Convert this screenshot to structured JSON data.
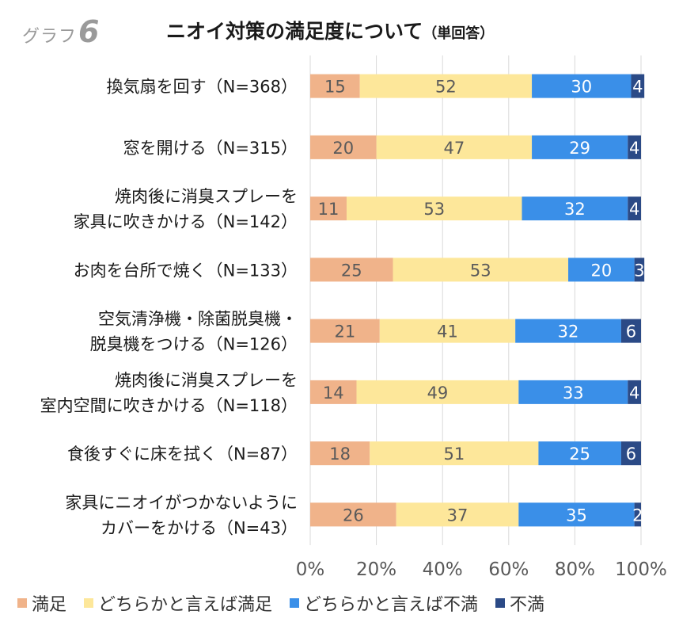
{
  "graph_label": {
    "prefix": "グラフ",
    "number": "6"
  },
  "title": {
    "main": "ニオイ対策の満足度について",
    "sub": "（単回答）"
  },
  "chart_data": {
    "type": "bar",
    "orientation": "horizontal",
    "stacked": "percent",
    "title": "ニオイ対策の満足度について（単回答）",
    "xlabel": "",
    "ylabel": "",
    "xlim": [
      0,
      100
    ],
    "x_ticks": [
      "0%",
      "20%",
      "40%",
      "60%",
      "80%",
      "100%"
    ],
    "grid": true,
    "legend_position": "bottom",
    "categories": [
      [
        "換気扇を回す（N=368）"
      ],
      [
        "窓を開ける（N=315）"
      ],
      [
        "焼肉後に消臭スプレーを",
        "家具に吹きかける（N=142）"
      ],
      [
        "お肉を台所で焼く（N=133）"
      ],
      [
        "空気清浄機・除菌脱臭機・",
        "脱臭機をつける（N=126）"
      ],
      [
        "焼肉後に消臭スプレーを",
        "室内空間に吹きかける（N=118）"
      ],
      [
        "食後すぐに床を拭く（N=87）"
      ],
      [
        "家具にニオイがつかないように",
        "カバーをかける（N=43）"
      ]
    ],
    "series": [
      {
        "name": "満足",
        "color": "#f0b38a",
        "label_color": "#5a5a5a",
        "values": [
          15,
          20,
          11,
          25,
          21,
          14,
          18,
          26
        ]
      },
      {
        "name": "どちらかと言えば満足",
        "color": "#fde79a",
        "label_color": "#5a5a5a",
        "values": [
          52,
          47,
          53,
          53,
          41,
          49,
          51,
          37
        ]
      },
      {
        "name": "どちらかと言えば不満",
        "color": "#3a8fe8",
        "label_color": "#ffffff",
        "values": [
          30,
          29,
          32,
          20,
          32,
          33,
          25,
          35
        ]
      },
      {
        "name": "不満",
        "color": "#2b4a86",
        "label_color": "#ffffff",
        "values": [
          4,
          4,
          4,
          3,
          6,
          4,
          6,
          2
        ]
      }
    ]
  }
}
